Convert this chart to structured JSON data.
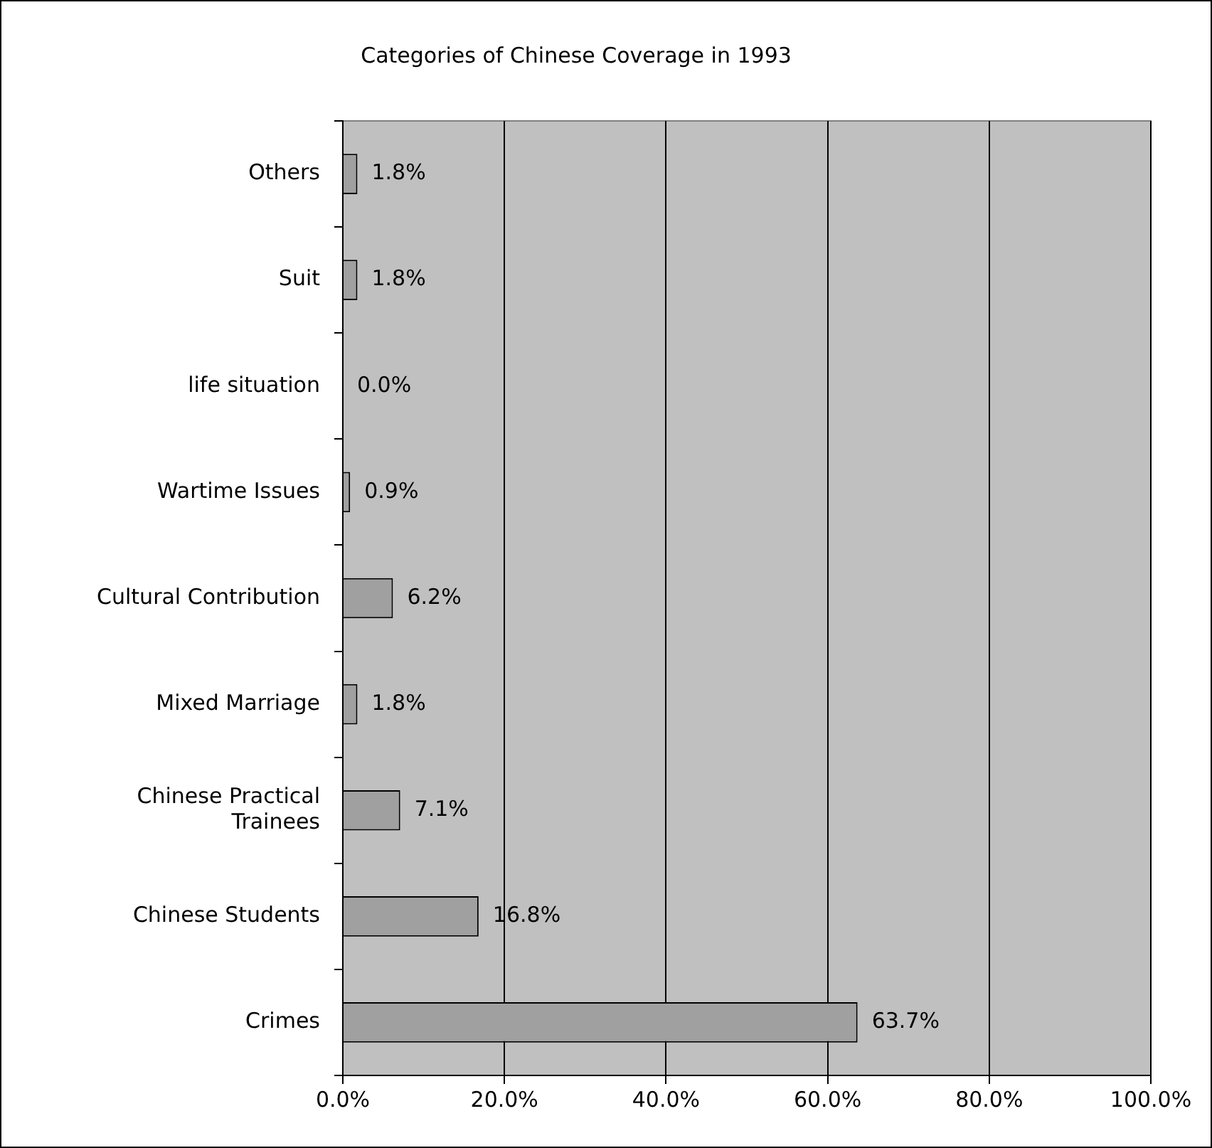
{
  "chart_data": {
    "type": "bar",
    "orientation": "horizontal",
    "title": "Categories of Chinese Coverage in 1993",
    "categories": [
      "Others",
      "Suit",
      "life situation",
      "Wartime Issues",
      "Cultural Contribution",
      "Mixed Marriage",
      "Chinese Practical Trainees",
      "Chinese Students",
      "Crimes"
    ],
    "values": [
      1.8,
      1.8,
      0.0,
      0.9,
      6.2,
      1.8,
      7.1,
      16.8,
      63.7
    ],
    "value_labels": [
      "1.8%",
      "1.8%",
      "0.0%",
      "0.9%",
      "6.2%",
      "1.8%",
      "7.1%",
      "16.8%",
      "63.7%"
    ],
    "color": "#a0a0a0",
    "xlim": [
      0,
      100
    ],
    "xticks": [
      {
        "value": 0,
        "label": "0.0%"
      },
      {
        "value": 20,
        "label": "20.0%"
      },
      {
        "value": 40,
        "label": "40.0%"
      },
      {
        "value": 60,
        "label": "60.0%"
      },
      {
        "value": 80,
        "label": "80.0%"
      },
      {
        "value": 100,
        "label": "100.0%"
      }
    ],
    "grid": "x",
    "legend": false
  }
}
